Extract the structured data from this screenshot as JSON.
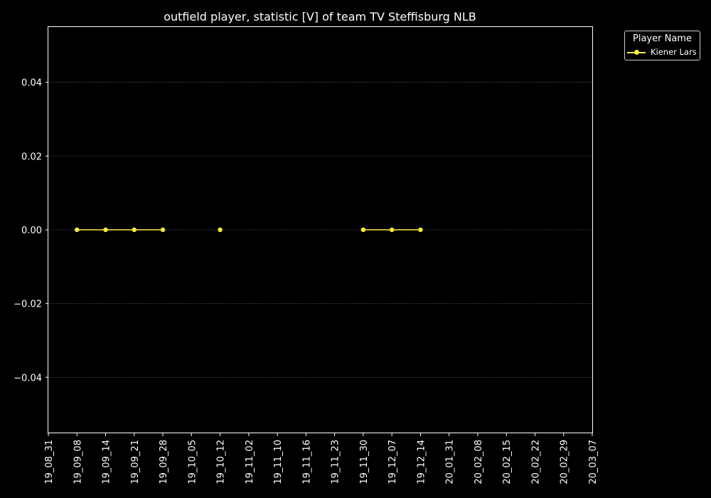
{
  "colors": {
    "background": "#000000",
    "axis": "#ffffff",
    "grid": "#666666",
    "series": "#ffeb3b"
  },
  "chart_data": {
    "type": "line",
    "title": "outfield player, statistic [V] of team TV Steffisburg NLB",
    "xlabel": "",
    "ylabel": "",
    "x_ticks": [
      "19_08_31",
      "19_09_08",
      "19_09_14",
      "19_09_21",
      "19_09_28",
      "19_10_05",
      "19_10_12",
      "19_11_02",
      "19_11_10",
      "19_11_16",
      "19_11_23",
      "19_11_30",
      "19_12_07",
      "19_12_14",
      "20_01_31",
      "20_02_08",
      "20_02_15",
      "20_02_22",
      "20_02_29",
      "20_03_07"
    ],
    "y_ticks": [
      -0.04,
      -0.02,
      0.0,
      0.02,
      0.04
    ],
    "ylim": [
      -0.055,
      0.055
    ],
    "grid": true,
    "legend": {
      "title": "Player Name",
      "placement": "outside top-right"
    },
    "series": [
      {
        "name": "Kiener Lars",
        "color": "#ffeb3b",
        "points": [
          {
            "x": "19_09_08",
            "y": 0
          },
          {
            "x": "19_09_14",
            "y": 0
          },
          {
            "x": "19_09_21",
            "y": 0
          },
          {
            "x": "19_09_28",
            "y": 0
          },
          {
            "x": "19_10_12",
            "y": 0
          },
          {
            "x": "19_11_30",
            "y": 0
          },
          {
            "x": "19_12_07",
            "y": 0
          },
          {
            "x": "19_12_14",
            "y": 0
          }
        ],
        "segments": [
          [
            "19_09_08",
            "19_09_28"
          ],
          [
            "19_11_30",
            "19_12_14"
          ]
        ]
      }
    ]
  }
}
